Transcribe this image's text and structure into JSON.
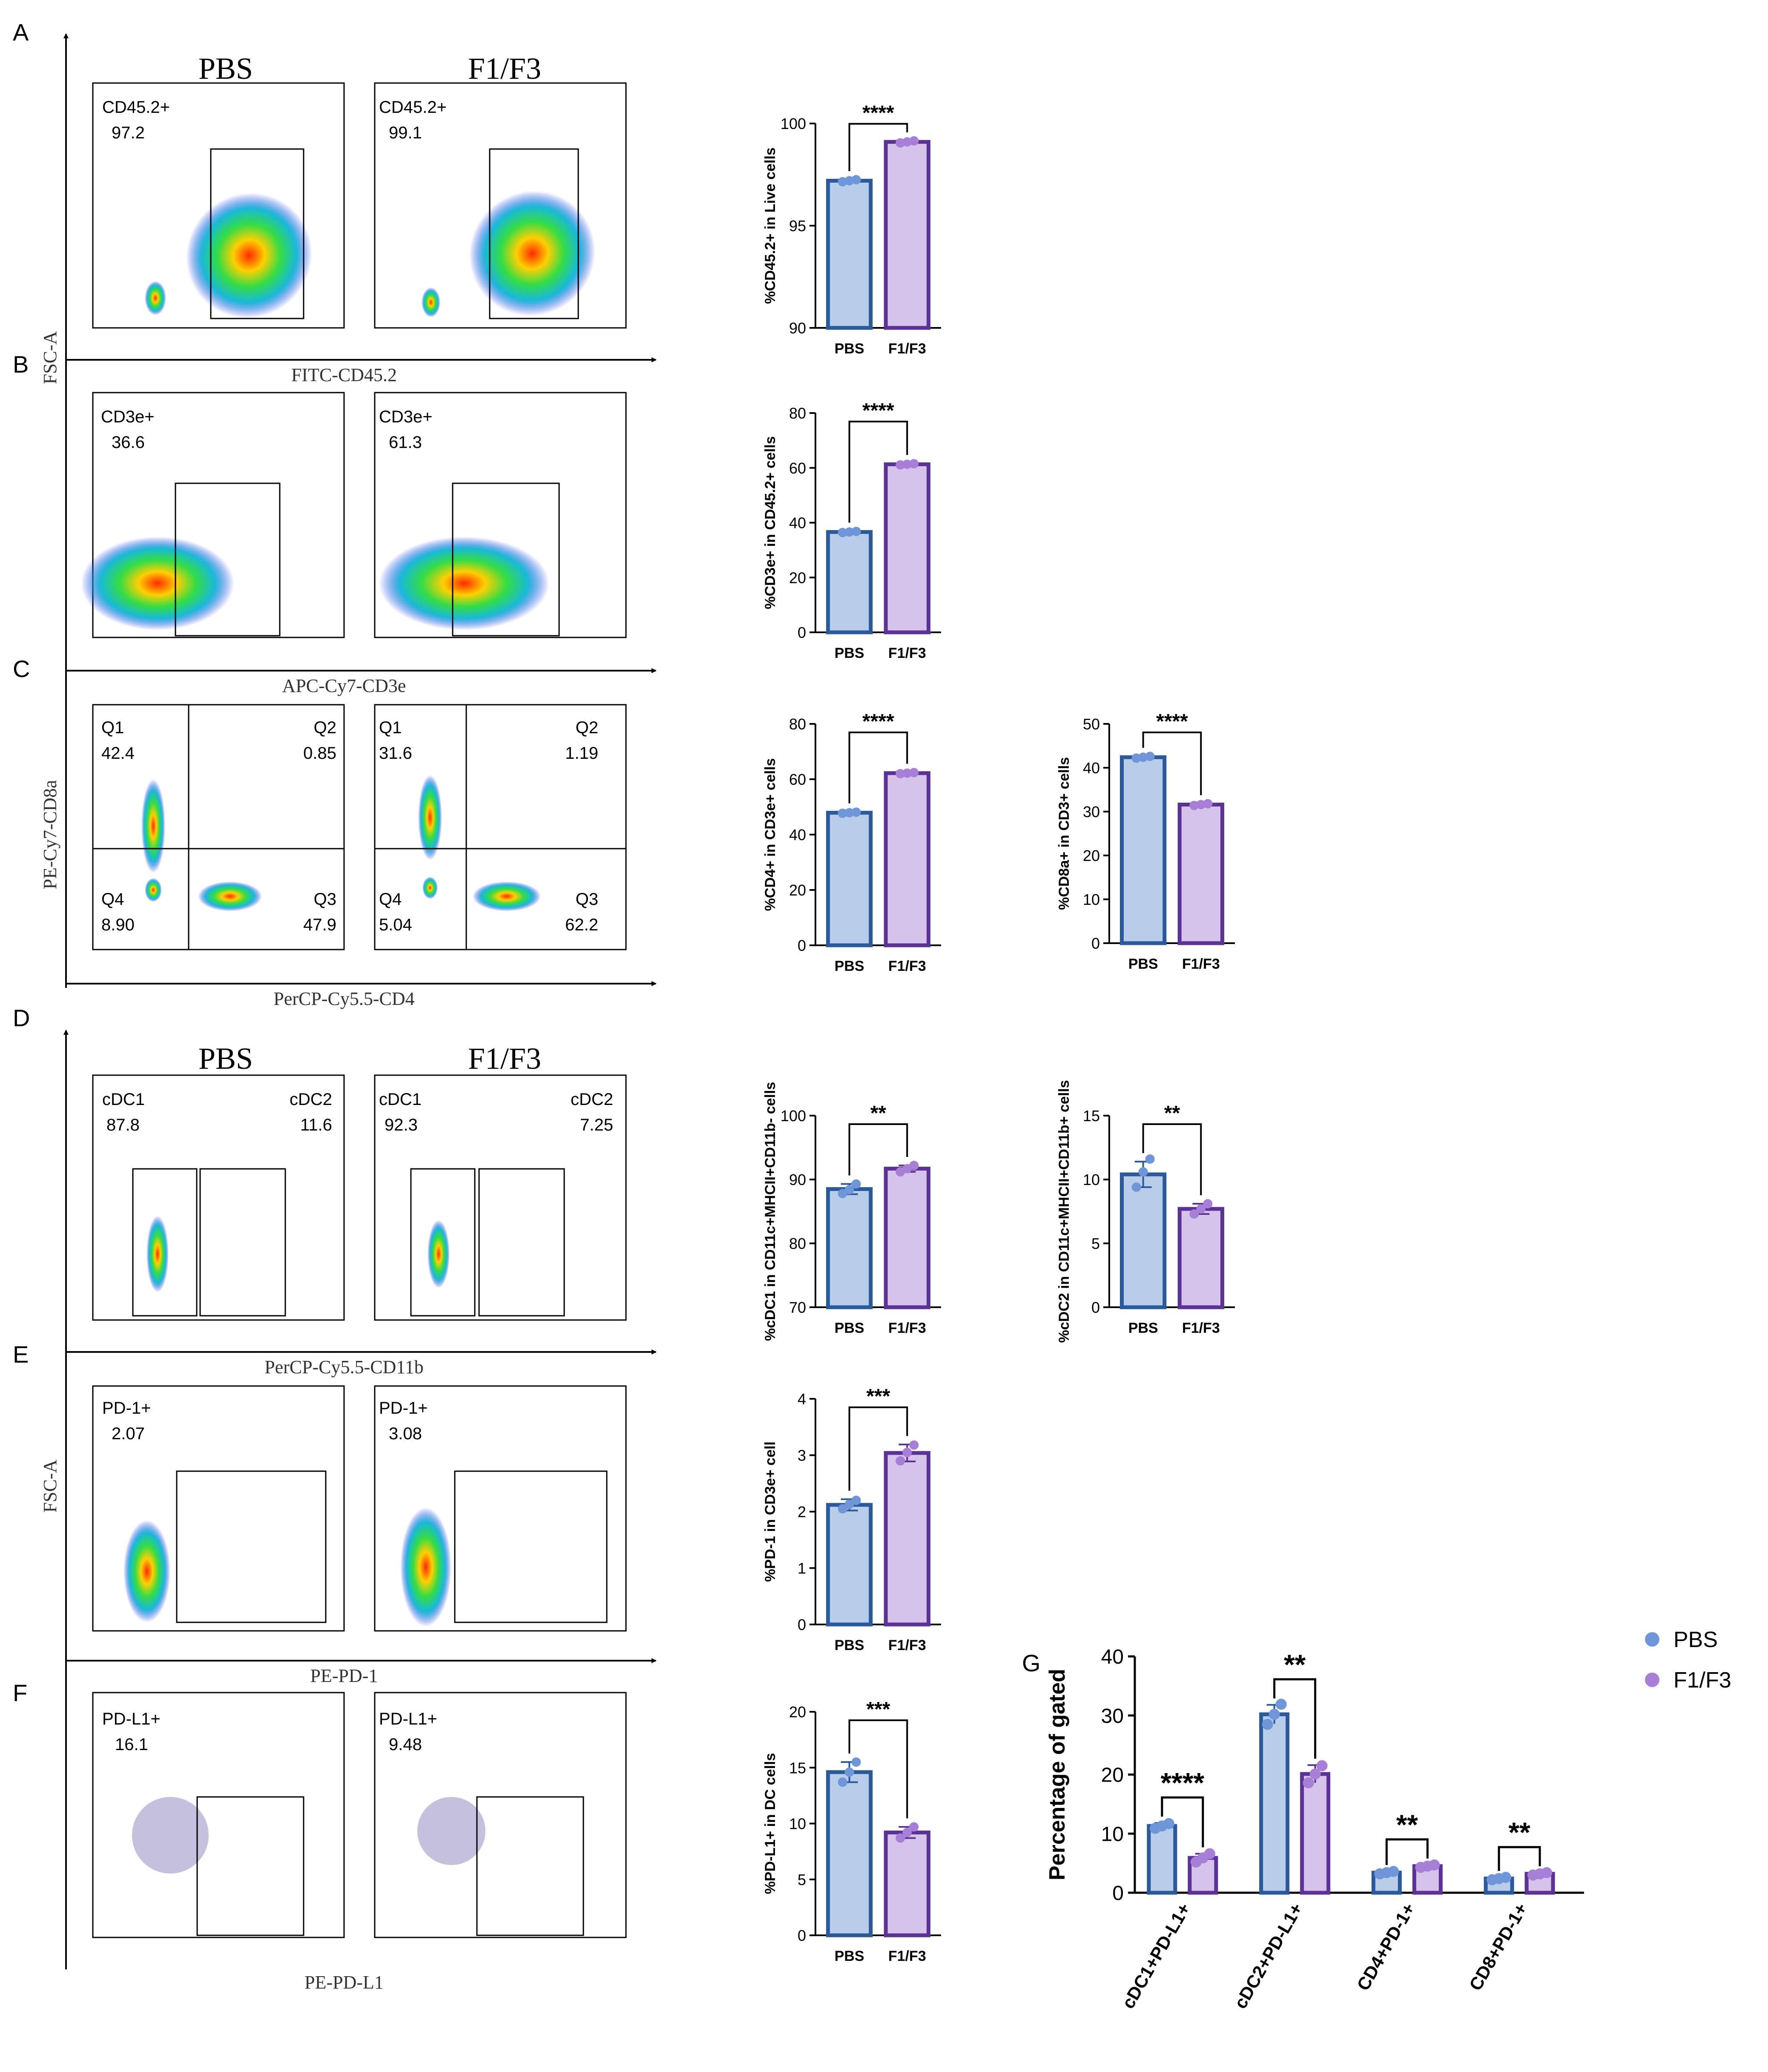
{
  "colors": {
    "pbs_fill": "#b7cdea",
    "pbs_edge": "#2a5a9c",
    "f_fill": "#d5c3ea",
    "f_edge": "#5c3296",
    "pbs_dot": "#6f96d8",
    "f_dot": "#a77fd6"
  },
  "panels": {
    "A": "A",
    "B": "B",
    "C": "C",
    "D": "D",
    "E": "E",
    "F": "F",
    "G": "G"
  },
  "columns": {
    "left": "PBS",
    "right": "F1/F3"
  },
  "axes": {
    "fsc_top": "FSC-A",
    "fitc": "FITC-CD45.2",
    "apc": "APC-Cy7-CD3e",
    "pecy7": "PE-Cy7-CD8a",
    "percp_cd4": "PerCP-Cy5.5-CD4",
    "percp_cd11b": "PerCP-Cy5.5-CD11b",
    "fsc_bottom": "FSC-A",
    "pepd1": "PE-PD-1",
    "pepdl1": "PE-PD-L1"
  },
  "flow": {
    "A": {
      "pbs": {
        "label": "CD45.2+",
        "value": "97.2"
      },
      "f": {
        "label": "CD45.2+",
        "value": "99.1"
      }
    },
    "B": {
      "pbs": {
        "label": "CD3e+",
        "value": "36.6"
      },
      "f": {
        "label": "CD3e+",
        "value": "61.3"
      }
    },
    "C": {
      "pbs": {
        "q1": "Q1",
        "q1v": "42.4",
        "q2": "Q2",
        "q2v": "0.85",
        "q3": "Q3",
        "q3v": "47.9",
        "q4": "Q4",
        "q4v": "8.90"
      },
      "f": {
        "q1": "Q1",
        "q1v": "31.6",
        "q2": "Q2",
        "q2v": "1.19",
        "q3": "Q3",
        "q3v": "62.2",
        "q4": "Q4",
        "q4v": "5.04"
      }
    },
    "D": {
      "pbs": {
        "l1": "cDC1",
        "v1": "87.8",
        "l2": "cDC2",
        "v2": "11.6"
      },
      "f": {
        "l1": "cDC1",
        "v1": "92.3",
        "l2": "cDC2",
        "v2": "7.25"
      }
    },
    "E": {
      "pbs": {
        "label": "PD-1+",
        "value": "2.07"
      },
      "f": {
        "label": "PD-1+",
        "value": "3.08"
      }
    },
    "F": {
      "pbs": {
        "label": "PD-L1+",
        "value": "16.1"
      },
      "f": {
        "label": "PD-L1+",
        "value": "9.48"
      }
    }
  },
  "chart_data": [
    {
      "id": "A",
      "type": "bar",
      "categories": [
        "PBS",
        "F1/F3"
      ],
      "values": [
        97.2,
        99.1
      ],
      "errors": [
        0.05,
        0.05
      ],
      "points": [
        [
          97.15,
          97.2,
          97.25
        ],
        [
          99.05,
          99.1,
          99.15
        ]
      ],
      "ylabel": "%CD45.2+ in Live cells",
      "ylim": [
        90,
        100
      ],
      "ticks": [
        90,
        95,
        100
      ],
      "sig": "****"
    },
    {
      "id": "B",
      "type": "bar",
      "categories": [
        "PBS",
        "F1/F3"
      ],
      "values": [
        36.6,
        61.3
      ],
      "errors": [
        0.3,
        0.3
      ],
      "points": [
        [
          36.4,
          36.6,
          36.8
        ],
        [
          61.1,
          61.3,
          61.5
        ]
      ],
      "ylabel": "%CD3e+ in CD45.2+ cells",
      "ylim": [
        0,
        80
      ],
      "ticks": [
        0,
        20,
        40,
        60,
        80
      ],
      "sig": "****"
    },
    {
      "id": "C1",
      "type": "bar",
      "categories": [
        "PBS",
        "F1/F3"
      ],
      "values": [
        47.9,
        62.2
      ],
      "errors": [
        0.3,
        0.3
      ],
      "points": [
        [
          47.7,
          47.9,
          48.1
        ],
        [
          62.0,
          62.2,
          62.4
        ]
      ],
      "ylabel": "%CD4+ in CD3e+ cells",
      "ylim": [
        0,
        80
      ],
      "ticks": [
        0,
        20,
        40,
        60,
        80
      ],
      "sig": "****"
    },
    {
      "id": "C2",
      "type": "bar",
      "categories": [
        "PBS",
        "F1/F3"
      ],
      "values": [
        42.4,
        31.6
      ],
      "errors": [
        0.2,
        0.2
      ],
      "points": [
        [
          42.2,
          42.4,
          42.6
        ],
        [
          31.4,
          31.6,
          31.8
        ]
      ],
      "ylabel": "%CD8a+ in CD3+ cells",
      "ylim": [
        0,
        50
      ],
      "ticks": [
        0,
        10,
        20,
        30,
        40,
        50
      ],
      "sig": "****"
    },
    {
      "id": "D1",
      "type": "bar",
      "categories": [
        "PBS",
        "F1/F3"
      ],
      "values": [
        88.5,
        91.7
      ],
      "errors": [
        0.8,
        0.5
      ],
      "points": [
        [
          87.8,
          88.4,
          89.3
        ],
        [
          91.2,
          91.7,
          92.2
        ]
      ],
      "ylabel": "%cDC1 in CD11c+MHCII+CD11b- cells",
      "ylim": [
        70,
        100
      ],
      "ticks": [
        70,
        80,
        90,
        100
      ],
      "sig": "**"
    },
    {
      "id": "D2",
      "type": "bar",
      "categories": [
        "PBS",
        "F1/F3"
      ],
      "values": [
        10.4,
        7.7
      ],
      "errors": [
        1.0,
        0.4
      ],
      "points": [
        [
          9.4,
          10.6,
          11.6
        ],
        [
          7.3,
          7.7,
          8.1
        ]
      ],
      "ylabel": "%cDC2 in CD11c+MHCII+CD11b+ cells",
      "ylim": [
        0,
        15
      ],
      "ticks": [
        0,
        5,
        10,
        15
      ],
      "sig": "**"
    },
    {
      "id": "E",
      "type": "bar",
      "categories": [
        "PBS",
        "F1/F3"
      ],
      "values": [
        2.12,
        3.04
      ],
      "errors": [
        0.1,
        0.15
      ],
      "points": [
        [
          2.05,
          2.13,
          2.2
        ],
        [
          2.9,
          3.05,
          3.18
        ]
      ],
      "ylabel": "%PD-1 in CD3e+ cell",
      "ylim": [
        0,
        4
      ],
      "ticks": [
        0,
        1,
        2,
        3,
        4
      ],
      "sig": "***"
    },
    {
      "id": "F",
      "type": "bar",
      "categories": [
        "PBS",
        "F1/F3"
      ],
      "values": [
        14.6,
        9.2
      ],
      "errors": [
        0.9,
        0.5
      ],
      "points": [
        [
          13.7,
          14.6,
          15.5
        ],
        [
          8.7,
          9.2,
          9.7
        ]
      ],
      "ylabel": "%PD-L1+ in DC cells",
      "ylim": [
        0,
        20
      ],
      "ticks": [
        0,
        5,
        10,
        15,
        20
      ],
      "sig": "***"
    },
    {
      "id": "G",
      "type": "bar",
      "categories": [
        "cDC1+PD-L1+",
        "cDC2+PD-L1+",
        "CD4+PD-1+",
        "CD8+PD-1+"
      ],
      "series": [
        {
          "name": "PBS",
          "values": [
            11.3,
            30.2,
            3.4,
            2.4
          ],
          "errors": [
            0.5,
            1.6,
            0.2,
            0.2
          ]
        },
        {
          "name": "F1/F3",
          "values": [
            5.9,
            20.1,
            4.5,
            3.2
          ],
          "errors": [
            0.7,
            1.5,
            0.2,
            0.2
          ]
        }
      ],
      "points": [
        [
          [
            10.9,
            11.3,
            11.7
          ],
          [
            5.2,
            5.9,
            6.6
          ]
        ],
        [
          [
            28.5,
            30.2,
            31.9
          ],
          [
            18.6,
            20.1,
            21.5
          ]
        ],
        [
          [
            3.2,
            3.4,
            3.6
          ],
          [
            4.3,
            4.5,
            4.7
          ]
        ],
        [
          [
            2.2,
            2.4,
            2.6
          ],
          [
            3.0,
            3.2,
            3.4
          ]
        ]
      ],
      "ylabel": "Percentage of gated",
      "ylim": [
        0,
        40
      ],
      "ticks": [
        0,
        10,
        20,
        30,
        40
      ],
      "sig": [
        "****",
        "**",
        "**",
        "**"
      ],
      "legend": "right"
    }
  ]
}
